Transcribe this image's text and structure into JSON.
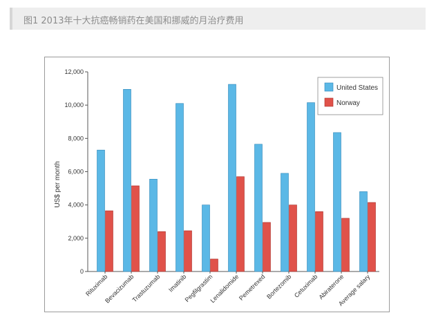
{
  "caption": "图1 2013年十大抗癌畅销药在美国和挪威的月治疗费用",
  "colors": {
    "us": "#5bb8e6",
    "norway": "#e0524a",
    "us_edge": "#2f86b8",
    "norway_edge": "#a8302a",
    "axis": "#555555"
  },
  "chart_data": {
    "type": "bar",
    "title": "",
    "xlabel": "",
    "ylabel": "US$ per month",
    "ylim": [
      0,
      12000
    ],
    "yticks": [
      0,
      2000,
      4000,
      6000,
      8000,
      10000,
      12000
    ],
    "ytick_labels": [
      "0",
      "2,000",
      "4,000",
      "6,000",
      "8,000",
      "10,000",
      "12,000"
    ],
    "legend_position": "top-right",
    "categories": [
      "Rituximab",
      "Bevacizumab",
      "Trastuzumab",
      "Imatinib",
      "Pegfilgrastim",
      "Lenalidomide",
      "Pemetrexed",
      "Bortezomib",
      "Cetuximab",
      "Abiraterone",
      "Average salary"
    ],
    "series": [
      {
        "name": "United States",
        "values": [
          7300,
          10950,
          5550,
          10100,
          4000,
          11250,
          7650,
          5900,
          10150,
          8350,
          4800
        ]
      },
      {
        "name": "Norway",
        "values": [
          3650,
          5150,
          2400,
          2450,
          750,
          5700,
          2950,
          4000,
          3600,
          3200,
          4150
        ]
      }
    ]
  }
}
